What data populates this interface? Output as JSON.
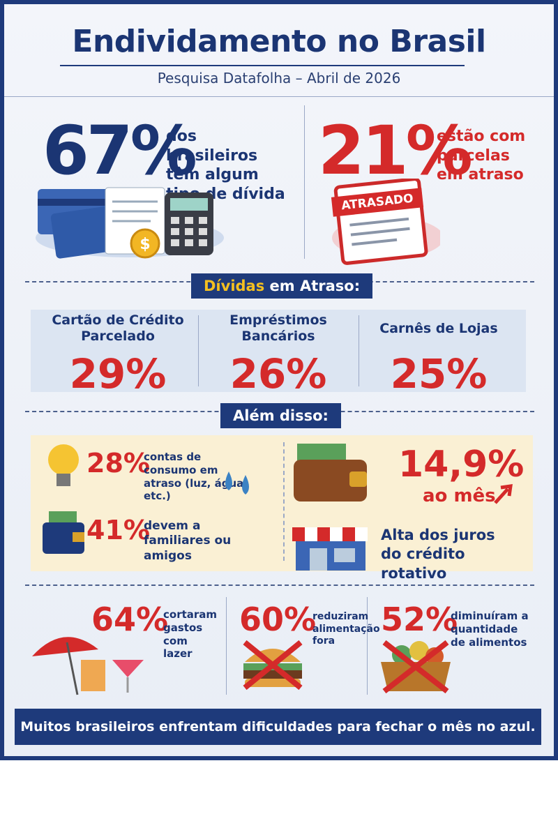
{
  "header": {
    "title": "Endividamento no Brasil",
    "subtitle": "Pesquisa Datafolha – Abril de 2026"
  },
  "highlights": [
    {
      "value": "67%",
      "text": "dos brasileiros têm algum tipo de dívida"
    },
    {
      "value": "21%",
      "text": "estão com parcelas em atraso",
      "stamp": "ATRASADO"
    }
  ],
  "overdue": {
    "title_highlight": "Dívidas",
    "title_rest": "em Atraso:",
    "items": [
      {
        "label": "Cartão de Crédito Parcelado",
        "value": "29%"
      },
      {
        "label": "Empréstimos Bancários",
        "value": "26%"
      },
      {
        "label": "Carnês de Lojas",
        "value": "25%"
      }
    ]
  },
  "more": {
    "title": "Além disso:",
    "items": [
      {
        "value": "28%",
        "text": "contas de consumo em atraso (luz, água, etc.)"
      },
      {
        "value": "41%",
        "text": "devem a familiares ou amigos"
      }
    ],
    "rate": {
      "value": "14,9%",
      "unit": "ao mês",
      "text": "Alta dos juros do crédito rotativo"
    }
  },
  "cuts": [
    {
      "value": "64%",
      "text": "cortaram gastos com lazer"
    },
    {
      "value": "60%",
      "text": "reduziram alimentação fora"
    },
    {
      "value": "52%",
      "text": "diminuíram a quantidade de alimentos"
    }
  ],
  "footer": "Muitos brasileiros enfrentam dificuldades para fechar o mês no azul."
}
